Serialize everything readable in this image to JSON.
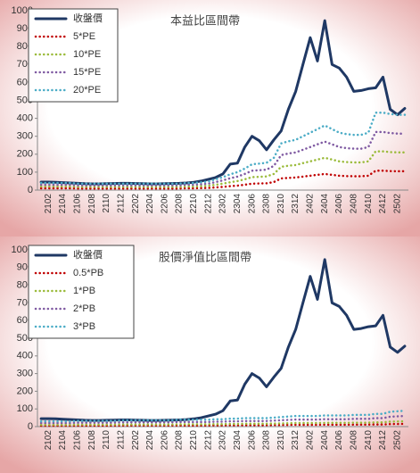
{
  "chart_data": [
    {
      "type": "line",
      "title": "本益比區間帶",
      "legend": "upper left",
      "categories": [
        null,
        "2102",
        null,
        "2104",
        null,
        "2106",
        null,
        "2108",
        null,
        "2110",
        null,
        "2112",
        null,
        "2202",
        null,
        "2204",
        null,
        "2206",
        null,
        "2208",
        null,
        "2210",
        null,
        "2212",
        null,
        "2302",
        null,
        "2304",
        null,
        "2306",
        null,
        "2308",
        null,
        "2310",
        null,
        "2312",
        null,
        "2402",
        null,
        "2404",
        null,
        "2406",
        null,
        "2408",
        null,
        "2410",
        null,
        "2412",
        null,
        "2502",
        null
      ],
      "ylim": [
        0,
        1000
      ],
      "yticks": [
        0,
        100,
        200,
        300,
        400,
        500,
        600,
        700,
        800,
        900,
        1000
      ],
      "series": [
        {
          "name": "收盤價",
          "color": "#1f3864",
          "style": "solid",
          "values": [
            45,
            45,
            44,
            42,
            40,
            38,
            36,
            35,
            35,
            36,
            37,
            38,
            38,
            37,
            36,
            35,
            35,
            36,
            37,
            38,
            40,
            44,
            50,
            60,
            70,
            90,
            145,
            150,
            240,
            300,
            275,
            225,
            280,
            330,
            450,
            550,
            700,
            850,
            720,
            945,
            700,
            680,
            630,
            550,
            555,
            565,
            570,
            630,
            450,
            420,
            455
          ]
        },
        {
          "name": "5*PE",
          "color": "#c00000",
          "style": "dotted",
          "values": [
            10,
            10,
            10,
            10,
            10,
            9,
            9,
            9,
            9,
            9,
            9,
            9,
            9,
            9,
            9,
            9,
            9,
            9,
            9,
            9,
            10,
            10,
            11,
            12,
            15,
            18,
            22,
            25,
            30,
            36,
            37,
            38,
            45,
            65,
            68,
            70,
            75,
            80,
            85,
            90,
            85,
            80,
            78,
            77,
            77,
            80,
            108,
            108,
            106,
            105,
            105
          ]
        },
        {
          "name": "10*PE",
          "color": "#9bbb3b",
          "style": "dotted",
          "values": [
            20,
            20,
            20,
            20,
            20,
            18,
            18,
            18,
            18,
            18,
            18,
            18,
            18,
            18,
            18,
            18,
            18,
            18,
            18,
            18,
            20,
            20,
            22,
            24,
            30,
            36,
            44,
            50,
            60,
            72,
            74,
            76,
            90,
            130,
            136,
            140,
            150,
            160,
            170,
            180,
            170,
            160,
            156,
            154,
            154,
            160,
            216,
            216,
            212,
            210,
            210
          ]
        },
        {
          "name": "15*PE",
          "color": "#7f5aa2",
          "style": "dotted",
          "values": [
            30,
            30,
            30,
            30,
            30,
            27,
            27,
            27,
            27,
            27,
            27,
            27,
            27,
            27,
            27,
            27,
            27,
            27,
            27,
            27,
            30,
            30,
            33,
            36,
            45,
            54,
            66,
            75,
            90,
            108,
            111,
            114,
            135,
            195,
            204,
            210,
            225,
            240,
            255,
            270,
            255,
            240,
            234,
            231,
            231,
            240,
            324,
            324,
            318,
            315,
            315
          ]
        },
        {
          "name": "20*PE",
          "color": "#4bacc6",
          "style": "dotted",
          "values": [
            40,
            40,
            40,
            40,
            40,
            36,
            36,
            36,
            36,
            36,
            36,
            36,
            36,
            36,
            36,
            36,
            36,
            36,
            36,
            36,
            40,
            40,
            44,
            48,
            60,
            72,
            88,
            100,
            120,
            144,
            148,
            152,
            180,
            260,
            272,
            280,
            300,
            320,
            340,
            360,
            340,
            320,
            312,
            308,
            308,
            320,
            432,
            432,
            424,
            420,
            420
          ]
        }
      ]
    },
    {
      "type": "line",
      "title": "股價淨值比區間帶",
      "legend": "upper left",
      "categories": [
        null,
        "2102",
        null,
        "2104",
        null,
        "2106",
        null,
        "2108",
        null,
        "2110",
        null,
        "2112",
        null,
        "2202",
        null,
        "2204",
        null,
        "2206",
        null,
        "2208",
        null,
        "2210",
        null,
        "2212",
        null,
        "2302",
        null,
        "2304",
        null,
        "2306",
        null,
        "2308",
        null,
        "2310",
        null,
        "2312",
        null,
        "2402",
        null,
        "2404",
        null,
        "2406",
        null,
        "2408",
        null,
        "2410",
        null,
        "2412",
        null,
        "2502",
        null
      ],
      "ylim": [
        0,
        1000
      ],
      "yticks": [
        0,
        100,
        200,
        300,
        400,
        500,
        600,
        700,
        800,
        900,
        1000
      ],
      "series": [
        {
          "name": "收盤價",
          "color": "#1f3864",
          "style": "solid",
          "values": [
            45,
            45,
            44,
            42,
            40,
            38,
            36,
            35,
            35,
            36,
            37,
            38,
            38,
            37,
            36,
            35,
            35,
            36,
            37,
            38,
            40,
            44,
            50,
            60,
            70,
            90,
            145,
            150,
            240,
            300,
            275,
            225,
            280,
            330,
            450,
            550,
            700,
            850,
            720,
            945,
            700,
            680,
            630,
            550,
            555,
            565,
            570,
            630,
            450,
            420,
            455
          ]
        },
        {
          "name": "0.5*PB",
          "color": "#c00000",
          "style": "dotted",
          "values": [
            5,
            5,
            5,
            5,
            5,
            5.5,
            5.5,
            5.5,
            5.5,
            5.5,
            5.5,
            6,
            6,
            6,
            6,
            6,
            6,
            6,
            6,
            6.5,
            6.5,
            6.5,
            6.5,
            6.5,
            7,
            7,
            7.5,
            7.5,
            8,
            8,
            8,
            8,
            8.5,
            9,
            9.5,
            10,
            10,
            10,
            10,
            10.5,
            10.5,
            10.5,
            10.5,
            11,
            11,
            11,
            12,
            12,
            14,
            14.5,
            15
          ]
        },
        {
          "name": "1*PB",
          "color": "#9bbb3b",
          "style": "dotted",
          "values": [
            10,
            10,
            10,
            10,
            10,
            11,
            11,
            11,
            11,
            11,
            11,
            12,
            12,
            12,
            12,
            12,
            12,
            12,
            12,
            13,
            13,
            13,
            13,
            13,
            14,
            14,
            15,
            15,
            16,
            16,
            16,
            16,
            17,
            18,
            19,
            20,
            20,
            20,
            20,
            21,
            21,
            21,
            21,
            22,
            22,
            22,
            24,
            24,
            28,
            29,
            30
          ]
        },
        {
          "name": "2*PB",
          "color": "#7f5aa2",
          "style": "dotted",
          "values": [
            20,
            20,
            20,
            20,
            20,
            22,
            22,
            22,
            22,
            22,
            22,
            24,
            24,
            24,
            24,
            24,
            24,
            24,
            24,
            26,
            26,
            26,
            26,
            26,
            28,
            28,
            30,
            30,
            32,
            32,
            32,
            32,
            34,
            36,
            38,
            40,
            40,
            40,
            40,
            42,
            42,
            42,
            42,
            44,
            44,
            44,
            48,
            48,
            56,
            58,
            60
          ]
        },
        {
          "name": "3*PB",
          "color": "#4bacc6",
          "style": "dotted",
          "values": [
            30,
            30,
            30,
            30,
            30,
            33,
            33,
            33,
            33,
            33,
            33,
            36,
            36,
            36,
            36,
            36,
            36,
            36,
            36,
            39,
            39,
            39,
            39,
            39,
            42,
            42,
            45,
            45,
            48,
            48,
            48,
            48,
            51,
            54,
            57,
            60,
            60,
            60,
            60,
            63,
            63,
            63,
            63,
            66,
            66,
            66,
            72,
            72,
            84,
            87,
            90
          ]
        }
      ]
    }
  ]
}
